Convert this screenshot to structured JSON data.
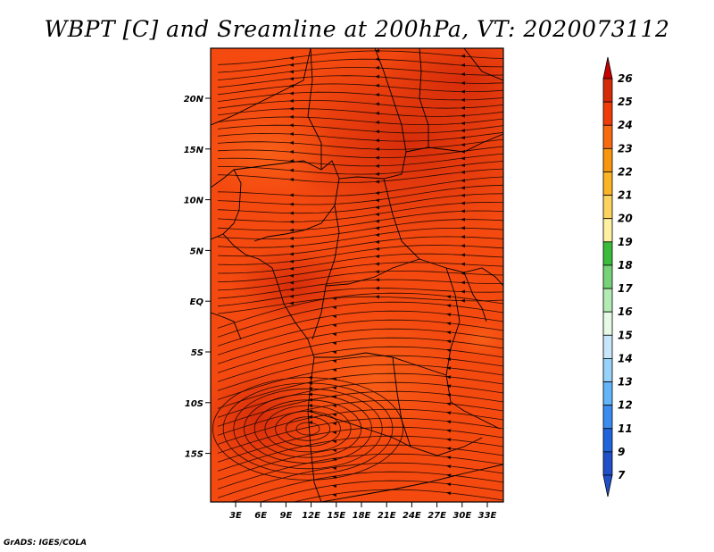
{
  "title": "WBPT [C] and Sreamline at 200hPa, VT: 2020073112",
  "footer": "GrADS: IGES/COLA",
  "map": {
    "lat_labels": [
      "20N",
      "15N",
      "10N",
      "5N",
      "EQ",
      "5S",
      "10S",
      "15S"
    ],
    "lon_labels": [
      "3E",
      "6E",
      "9E",
      "12E",
      "15E",
      "18E",
      "21E",
      "24E",
      "27E",
      "30E",
      "33E"
    ],
    "field_colors": {
      "base": "#f44a10",
      "warm": "#e8340c",
      "hot": "#d42a0a",
      "hottest": "#c81e08",
      "cool": "#f86218"
    }
  },
  "colorbar": {
    "levels": [
      "26",
      "25",
      "24",
      "23",
      "22",
      "21",
      "20",
      "19",
      "18",
      "17",
      "16",
      "15",
      "14",
      "13",
      "12",
      "11",
      "9",
      "7"
    ],
    "colors": [
      "#c80000",
      "#d42a0a",
      "#f03c0a",
      "#f86a12",
      "#f89610",
      "#fab428",
      "#fcd35e",
      "#fdf0a0",
      "#3cbb3c",
      "#78d278",
      "#b4ebb4",
      "#e6fae6",
      "#c8e6fa",
      "#96d2fa",
      "#64b4fa",
      "#3c8cf0",
      "#2064dc",
      "#2050c8"
    ]
  }
}
